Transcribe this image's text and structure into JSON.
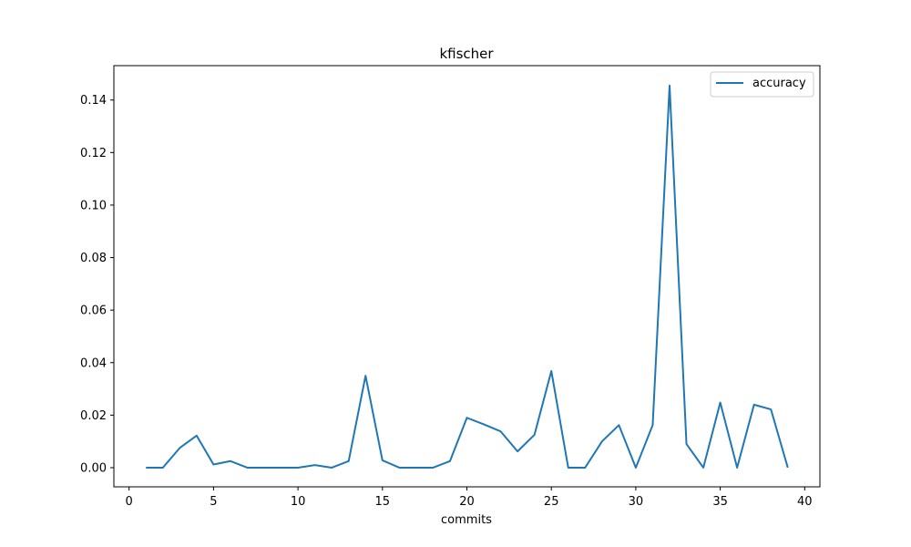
{
  "chart_data": {
    "type": "line",
    "title": "kfischer",
    "xlabel": "commits",
    "ylabel": "",
    "xlim": [
      -0.9,
      40.9
    ],
    "ylim": [
      -0.0073,
      0.1531
    ],
    "xticks": [
      0,
      5,
      10,
      15,
      20,
      25,
      30,
      35,
      40
    ],
    "yticks": [
      0.0,
      0.02,
      0.04,
      0.06,
      0.08,
      0.1,
      0.12,
      0.14
    ],
    "ytick_labels": [
      "0.00",
      "0.02",
      "0.04",
      "0.06",
      "0.08",
      "0.10",
      "0.12",
      "0.14"
    ],
    "grid": false,
    "legend_position": "top-right",
    "series": [
      {
        "name": "accuracy",
        "color": "#1f77b4",
        "x": [
          1,
          2,
          3,
          4,
          5,
          6,
          7,
          8,
          9,
          10,
          11,
          12,
          13,
          14,
          15,
          16,
          17,
          18,
          19,
          20,
          21,
          22,
          23,
          24,
          25,
          26,
          27,
          28,
          29,
          30,
          31,
          32,
          33,
          34,
          35,
          36,
          37,
          38,
          39
        ],
        "values": [
          0.0,
          0.0,
          0.0075,
          0.0122,
          0.0012,
          0.0025,
          0.0,
          0.0,
          0.0,
          0.0,
          0.001,
          0.0,
          0.0025,
          0.035,
          0.0028,
          0.0,
          0.0,
          0.0,
          0.0025,
          0.019,
          0.0165,
          0.0138,
          0.0062,
          0.0125,
          0.0368,
          0.0,
          0.0,
          0.01,
          0.0162,
          0.0,
          0.0162,
          0.1455,
          0.009,
          0.0,
          0.0248,
          0.0,
          0.024,
          0.0222,
          0.0
        ]
      }
    ]
  }
}
